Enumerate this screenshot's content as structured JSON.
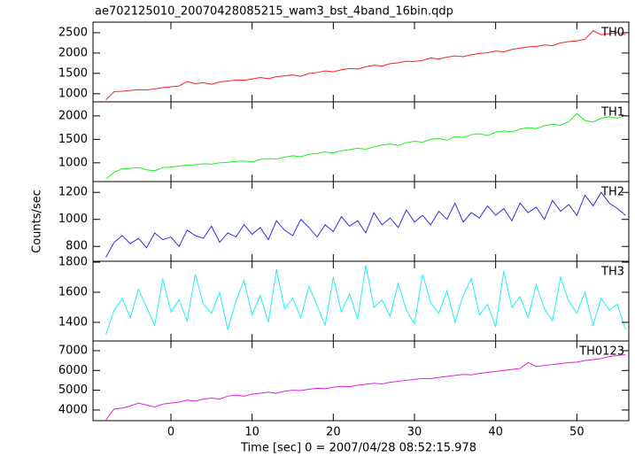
{
  "title": "ae702125010_20070428085215_wam3_bst_4band_16bin.qdp",
  "ylabel": "Counts/sec",
  "xlabel": "Time [sec] 0 = 2007/04/28 08:52:15.978",
  "chart_data": [
    {
      "type": "line",
      "x": [
        -8,
        -7,
        -6,
        -5,
        -4,
        -3,
        -2,
        -1,
        0,
        1,
        2,
        3,
        4,
        5,
        6,
        7,
        8,
        9,
        10,
        11,
        12,
        13,
        14,
        15,
        16,
        17,
        18,
        19,
        20,
        21,
        22,
        23,
        24,
        25,
        26,
        27,
        28,
        29,
        30,
        31,
        32,
        33,
        34,
        35,
        36,
        37,
        38,
        39,
        40,
        41,
        42,
        43,
        44,
        45,
        46,
        47,
        48,
        49,
        50,
        51,
        52,
        53,
        54,
        55,
        56
      ],
      "series": [
        {
          "name": "TH0",
          "color": "#ff2020",
          "values": [
            850,
            1050,
            1060,
            1080,
            1100,
            1090,
            1120,
            1150,
            1170,
            1190,
            1300,
            1250,
            1270,
            1230,
            1290,
            1310,
            1340,
            1330,
            1360,
            1400,
            1370,
            1420,
            1440,
            1460,
            1430,
            1500,
            1520,
            1560,
            1540,
            1590,
            1620,
            1610,
            1660,
            1700,
            1680,
            1740,
            1760,
            1800,
            1790,
            1820,
            1880,
            1850,
            1900,
            1930,
            1910,
            1960,
            1990,
            2010,
            2050,
            2030,
            2090,
            2120,
            2150,
            2160,
            2200,
            2180,
            2250,
            2280,
            2300,
            2340,
            2550,
            2450,
            2480,
            2500,
            2450
          ]
        }
      ],
      "xlim": [
        -9.6,
        56.4
      ],
      "xticks": [
        0,
        10,
        20,
        30,
        40,
        50
      ],
      "ylim": [
        800,
        2760
      ],
      "yticks": [
        1000,
        1500,
        2000,
        2500
      ]
    },
    {
      "type": "line",
      "x": [
        -8,
        -7,
        -6,
        -5,
        -4,
        -3,
        -2,
        -1,
        0,
        1,
        2,
        3,
        4,
        5,
        6,
        7,
        8,
        9,
        10,
        11,
        12,
        13,
        14,
        15,
        16,
        17,
        18,
        19,
        20,
        21,
        22,
        23,
        24,
        25,
        26,
        27,
        28,
        29,
        30,
        31,
        32,
        33,
        34,
        35,
        36,
        37,
        38,
        39,
        40,
        41,
        42,
        43,
        44,
        45,
        46,
        47,
        48,
        49,
        50,
        51,
        52,
        53,
        54,
        55,
        56
      ],
      "series": [
        {
          "name": "TH1",
          "color": "#20ee20",
          "values": [
            650,
            800,
            870,
            880,
            900,
            850,
            830,
            900,
            910,
            930,
            950,
            960,
            980,
            970,
            1000,
            1010,
            1030,
            1040,
            1020,
            1070,
            1090,
            1080,
            1120,
            1150,
            1130,
            1180,
            1200,
            1230,
            1210,
            1260,
            1280,
            1310,
            1290,
            1340,
            1380,
            1400,
            1370,
            1430,
            1460,
            1440,
            1500,
            1520,
            1480,
            1560,
            1540,
            1600,
            1620,
            1580,
            1650,
            1680,
            1660,
            1720,
            1750,
            1730,
            1790,
            1820,
            1800,
            1880,
            2050,
            1900,
            1870,
            1950,
            1980,
            1950,
            2020
          ]
        }
      ],
      "xlim": [
        -9.6,
        56.4
      ],
      "xticks": [
        0,
        10,
        20,
        30,
        40,
        50
      ],
      "ylim": [
        600,
        2300
      ],
      "yticks": [
        1000,
        1500,
        2000
      ]
    },
    {
      "type": "line",
      "x": [
        -8,
        -7,
        -6,
        -5,
        -4,
        -3,
        -2,
        -1,
        0,
        1,
        2,
        3,
        4,
        5,
        6,
        7,
        8,
        9,
        10,
        11,
        12,
        13,
        14,
        15,
        16,
        17,
        18,
        19,
        20,
        21,
        22,
        23,
        24,
        25,
        26,
        27,
        28,
        29,
        30,
        31,
        32,
        33,
        34,
        35,
        36,
        37,
        38,
        39,
        40,
        41,
        42,
        43,
        44,
        45,
        46,
        47,
        48,
        49,
        50,
        51,
        52,
        53,
        54,
        55,
        56
      ],
      "series": [
        {
          "name": "TH2",
          "color": "#3030e0",
          "values": [
            720,
            830,
            880,
            820,
            860,
            790,
            900,
            850,
            870,
            800,
            920,
            880,
            860,
            950,
            830,
            900,
            870,
            960,
            890,
            940,
            850,
            990,
            920,
            880,
            1000,
            940,
            870,
            960,
            910,
            1020,
            950,
            990,
            900,
            1050,
            960,
            1010,
            940,
            1070,
            980,
            1030,
            960,
            1060,
            1000,
            1120,
            980,
            1050,
            1010,
            1100,
            1030,
            1080,
            990,
            1120,
            1050,
            1090,
            1000,
            1140,
            1060,
            1110,
            1030,
            1180,
            1100,
            1200,
            1120,
            1080,
            1030
          ]
        }
      ],
      "xlim": [
        -9.6,
        56.4
      ],
      "xticks": [
        0,
        10,
        20,
        30,
        40,
        50
      ],
      "ylim": [
        690,
        1280
      ],
      "yticks": [
        800,
        1000,
        1200
      ]
    },
    {
      "type": "line",
      "x": [
        -8,
        -7,
        -6,
        -5,
        -4,
        -3,
        -2,
        -1,
        0,
        1,
        2,
        3,
        4,
        5,
        6,
        7,
        8,
        9,
        10,
        11,
        12,
        13,
        14,
        15,
        16,
        17,
        18,
        19,
        20,
        21,
        22,
        23,
        24,
        25,
        26,
        27,
        28,
        29,
        30,
        31,
        32,
        33,
        34,
        35,
        36,
        37,
        38,
        39,
        40,
        41,
        42,
        43,
        44,
        45,
        46,
        47,
        48,
        49,
        50,
        51,
        52,
        53,
        54,
        55,
        56
      ],
      "series": [
        {
          "name": "TH3",
          "color": "#20f0f0",
          "values": [
            1320,
            1480,
            1560,
            1430,
            1620,
            1500,
            1380,
            1690,
            1470,
            1550,
            1410,
            1720,
            1520,
            1460,
            1600,
            1350,
            1540,
            1680,
            1450,
            1580,
            1400,
            1750,
            1490,
            1560,
            1430,
            1640,
            1510,
            1380,
            1700,
            1470,
            1590,
            1420,
            1780,
            1500,
            1550,
            1440,
            1660,
            1480,
            1390,
            1720,
            1530,
            1460,
            1610,
            1400,
            1580,
            1690,
            1450,
            1520,
            1370,
            1740,
            1500,
            1570,
            1430,
            1650,
            1490,
            1410,
            1700,
            1540,
            1460,
            1600,
            1380,
            1560,
            1480,
            1520,
            1350
          ]
        }
      ],
      "xlim": [
        -9.6,
        56.4
      ],
      "xticks": [
        0,
        10,
        20,
        30,
        40,
        50
      ],
      "ylim": [
        1276,
        1806
      ],
      "yticks": [
        1400,
        1600,
        1800
      ]
    },
    {
      "type": "line",
      "x": [
        -8,
        -7,
        -6,
        -5,
        -4,
        -3,
        -2,
        -1,
        0,
        1,
        2,
        3,
        4,
        5,
        6,
        7,
        8,
        9,
        10,
        11,
        12,
        13,
        14,
        15,
        16,
        17,
        18,
        19,
        20,
        21,
        22,
        23,
        24,
        25,
        26,
        27,
        28,
        29,
        30,
        31,
        32,
        33,
        34,
        35,
        36,
        37,
        38,
        39,
        40,
        41,
        42,
        43,
        44,
        45,
        46,
        47,
        48,
        49,
        50,
        51,
        52,
        53,
        54,
        55,
        56
      ],
      "series": [
        {
          "name": "TH0123",
          "color": "#e020e0",
          "values": [
            3500,
            4050,
            4100,
            4200,
            4350,
            4250,
            4150,
            4300,
            4350,
            4400,
            4500,
            4450,
            4550,
            4600,
            4550,
            4700,
            4750,
            4700,
            4800,
            4850,
            4900,
            4850,
            4950,
            5000,
            4980,
            5050,
            5100,
            5080,
            5150,
            5200,
            5180,
            5250,
            5300,
            5350,
            5320,
            5400,
            5450,
            5500,
            5550,
            5600,
            5580,
            5650,
            5700,
            5750,
            5800,
            5780,
            5850,
            5900,
            5950,
            6000,
            6050,
            6100,
            6400,
            6200,
            6250,
            6300,
            6350,
            6400,
            6420,
            6500,
            6550,
            6600,
            6700,
            6750,
            6800
          ]
        }
      ],
      "xlim": [
        -9.6,
        56.4
      ],
      "xticks": [
        0,
        10,
        20,
        30,
        40,
        50
      ],
      "ylim": [
        3460,
        7490
      ],
      "yticks": [
        4000,
        5000,
        6000,
        7000
      ]
    }
  ]
}
